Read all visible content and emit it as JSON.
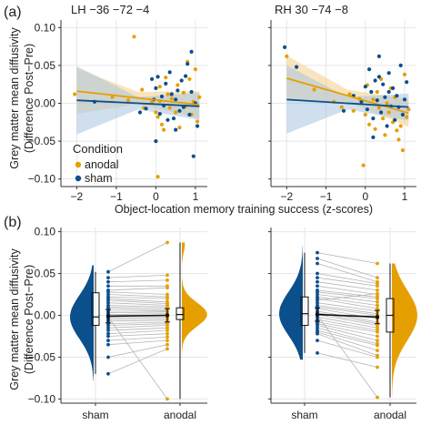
{
  "panel_labels": {
    "a": "(a)",
    "b": "(b)"
  },
  "colors": {
    "anodal": "#E69F00",
    "sham": "#0B4F8C",
    "grid": "#e6e6e6",
    "line": "#b5b5b5"
  },
  "y_label_line1": "Grey matter mean diffusivity",
  "y_label_line2": "(Difference Post−Pre)",
  "x_label_a": "Object-location memory training success (z-scores)",
  "legend": {
    "title": "Condition",
    "items": [
      {
        "name": "anodal"
      },
      {
        "name": "sham"
      }
    ]
  },
  "chart_data": [
    {
      "type": "scatter",
      "title": "LH −36 −72 −4",
      "xlabel": "Object-location memory training success (z-scores)",
      "ylabel": "Grey matter mean diffusivity (Difference Post−Pre)",
      "xlim": [
        -2.4,
        1.3
      ],
      "ylim": [
        -0.11,
        0.11
      ],
      "xticks": [
        -2,
        -1,
        0,
        1
      ],
      "yticks": [
        -0.1,
        -0.05,
        0.0,
        0.05,
        0.1
      ],
      "xtick_labels": [
        "−2",
        "−1",
        "0",
        "1"
      ],
      "ytick_labels": [
        "−0.10",
        "−0.05",
        "0.00",
        "0.05",
        "0.10"
      ],
      "grid": true,
      "legend_position": "bottom-left",
      "series": [
        {
          "name": "anodal",
          "points": [
            [
              -2.05,
              0.012
            ],
            [
              -1.1,
              0.008
            ],
            [
              -0.7,
              0.004
            ],
            [
              -0.55,
              0.088
            ],
            [
              -0.35,
              0.018
            ],
            [
              -0.3,
              -0.006
            ],
            [
              -0.1,
              0.002
            ],
            [
              0.0,
              -0.012
            ],
            [
              0.05,
              -0.018
            ],
            [
              0.1,
              0.022
            ],
            [
              0.1,
              0.003
            ],
            [
              0.15,
              -0.028
            ],
            [
              0.2,
              -0.035
            ],
            [
              0.25,
              0.034
            ],
            [
              0.3,
              0.012
            ],
            [
              0.35,
              -0.006
            ],
            [
              0.4,
              0.006
            ],
            [
              0.5,
              -0.012
            ],
            [
              0.55,
              0.024
            ],
            [
              0.6,
              -0.032
            ],
            [
              0.7,
              0.014
            ],
            [
              0.75,
              -0.004
            ],
            [
              0.8,
              0.055
            ],
            [
              0.85,
              0.032
            ],
            [
              0.9,
              -0.015
            ],
            [
              0.95,
              0.002
            ],
            [
              1.0,
              0.045
            ],
            [
              1.05,
              -0.024
            ],
            [
              1.1,
              0.008
            ],
            [
              0.05,
              -0.097
            ]
          ],
          "fit": {
            "x": [
              -2.0,
              1.1
            ],
            "y": [
              0.016,
              -0.002
            ]
          }
        },
        {
          "name": "sham",
          "points": [
            [
              -1.55,
              0.002
            ],
            [
              -0.4,
              -0.012
            ],
            [
              -0.25,
              -0.007
            ],
            [
              -0.1,
              0.032
            ],
            [
              -0.05,
              0.005
            ],
            [
              0.0,
              -0.05
            ],
            [
              0.0,
              0.02
            ],
            [
              0.05,
              0.035
            ],
            [
              0.1,
              -0.014
            ],
            [
              0.15,
              0.009
            ],
            [
              0.2,
              -0.003
            ],
            [
              0.25,
              0.026
            ],
            [
              0.3,
              -0.022
            ],
            [
              0.35,
              0.041
            ],
            [
              0.4,
              0.012
            ],
            [
              0.45,
              -0.02
            ],
            [
              0.5,
              -0.035
            ],
            [
              0.5,
              0.005
            ],
            [
              0.55,
              0.017
            ],
            [
              0.6,
              -0.01
            ],
            [
              0.65,
              0.03
            ],
            [
              0.7,
              -0.005
            ],
            [
              0.75,
              0.036
            ],
            [
              0.8,
              0.052
            ],
            [
              0.85,
              -0.015
            ],
            [
              0.9,
              0.015
            ],
            [
              0.95,
              -0.07
            ],
            [
              1.0,
              0.0
            ],
            [
              1.05,
              -0.03
            ],
            [
              0.9,
              0.068
            ]
          ],
          "fit": {
            "x": [
              -2.0,
              1.1
            ],
            "y": [
              0.004,
              -0.004
            ]
          }
        }
      ]
    },
    {
      "type": "scatter",
      "title": "RH 30 −74 −8",
      "xlabel": "Object-location memory training success (z-scores)",
      "ylabel": "",
      "xlim": [
        -2.4,
        1.3
      ],
      "ylim": [
        -0.11,
        0.11
      ],
      "xticks": [
        -2,
        -1,
        0,
        1
      ],
      "yticks": [
        -0.1,
        -0.05,
        0.0,
        0.05,
        0.1
      ],
      "xtick_labels": [
        "−2",
        "−1",
        "0",
        "1"
      ],
      "grid": true,
      "series": [
        {
          "name": "anodal",
          "points": [
            [
              -2.0,
              0.062
            ],
            [
              -1.3,
              0.018
            ],
            [
              -0.8,
              0.002
            ],
            [
              -0.6,
              -0.005
            ],
            [
              -0.4,
              0.012
            ],
            [
              -0.3,
              -0.01
            ],
            [
              -0.15,
              0.006
            ],
            [
              0.0,
              -0.015
            ],
            [
              0.05,
              0.024
            ],
            [
              0.1,
              -0.028
            ],
            [
              0.2,
              0.005
            ],
            [
              0.25,
              -0.034
            ],
            [
              0.3,
              0.015
            ],
            [
              0.35,
              -0.006
            ],
            [
              0.4,
              0.032
            ],
            [
              0.45,
              -0.02
            ],
            [
              0.5,
              -0.042
            ],
            [
              0.55,
              0.0
            ],
            [
              0.6,
              -0.012
            ],
            [
              0.65,
              0.02
            ],
            [
              0.7,
              -0.025
            ],
            [
              0.75,
              0.008
            ],
            [
              0.8,
              -0.036
            ],
            [
              0.85,
              -0.048
            ],
            [
              0.9,
              -0.03
            ],
            [
              0.95,
              -0.062
            ],
            [
              1.0,
              0.038
            ],
            [
              1.05,
              -0.018
            ],
            [
              1.1,
              -0.008
            ],
            [
              -0.05,
              -0.082
            ]
          ],
          "fit": {
            "x": [
              -2.0,
              1.1
            ],
            "y": [
              0.033,
              -0.013
            ]
          }
        },
        {
          "name": "sham",
          "points": [
            [
              -2.05,
              0.074
            ],
            [
              -1.75,
              0.048
            ],
            [
              -0.55,
              -0.01
            ],
            [
              -0.3,
              0.01
            ],
            [
              -0.1,
              0.002
            ],
            [
              0.0,
              0.022
            ],
            [
              0.05,
              -0.008
            ],
            [
              0.1,
              0.045
            ],
            [
              0.15,
              0.015
            ],
            [
              0.2,
              -0.02
            ],
            [
              0.25,
              0.03
            ],
            [
              0.3,
              0.004
            ],
            [
              0.35,
              0.035
            ],
            [
              0.4,
              -0.012
            ],
            [
              0.45,
              0.025
            ],
            [
              0.5,
              0.008
            ],
            [
              0.55,
              -0.03
            ],
            [
              0.6,
              0.015
            ],
            [
              0.65,
              -0.004
            ],
            [
              0.7,
              0.02
            ],
            [
              0.75,
              -0.022
            ],
            [
              0.8,
              0.01
            ],
            [
              0.85,
              -0.005
            ],
            [
              0.9,
              0.05
            ],
            [
              0.95,
              -0.015
            ],
            [
              1.0,
              0.005
            ],
            [
              1.05,
              0.028
            ],
            [
              0.35,
              0.062
            ],
            [
              0.6,
              0.04
            ],
            [
              0.2,
              -0.045
            ]
          ],
          "fit": {
            "x": [
              -2.0,
              1.1
            ],
            "y": [
              0.005,
              -0.005
            ]
          }
        }
      ]
    },
    {
      "type": "violin",
      "title": "",
      "ylabel": "Grey matter mean diffusivity (Difference Post−Pre)",
      "categories": [
        "sham",
        "anodal"
      ],
      "ylim": [
        -0.105,
        0.105
      ],
      "yticks": [
        -0.1,
        -0.05,
        0.0,
        0.05,
        0.1
      ],
      "ytick_labels": [
        "−0.10",
        "−0.05",
        "0.00",
        "0.05",
        "0.10"
      ],
      "box": {
        "sham": {
          "q1": -0.012,
          "median": -0.002,
          "q3": 0.027,
          "min": -0.07,
          "max": 0.052
        },
        "anodal": {
          "q1": -0.005,
          "median": 0.001,
          "q3": 0.009,
          "min": -0.1,
          "max": 0.087
        }
      },
      "means": {
        "sham": -0.001,
        "anodal": 0.0
      },
      "paired": [
        [
          0.052,
          0.087
        ],
        [
          0.045,
          0.048
        ],
        [
          0.04,
          0.042
        ],
        [
          0.035,
          0.035
        ],
        [
          0.03,
          0.033
        ],
        [
          0.028,
          0.025
        ],
        [
          0.025,
          0.022
        ],
        [
          0.022,
          0.02
        ],
        [
          0.02,
          0.016
        ],
        [
          0.018,
          0.014
        ],
        [
          0.015,
          0.012
        ],
        [
          0.012,
          0.01
        ],
        [
          0.01,
          0.008
        ],
        [
          0.008,
          0.006
        ],
        [
          0.005,
          0.005
        ],
        [
          0.003,
          0.004
        ],
        [
          0.001,
          0.002
        ],
        [
          -0.001,
          0.0
        ],
        [
          -0.003,
          -0.002
        ],
        [
          -0.005,
          -0.004
        ],
        [
          -0.007,
          -0.006
        ],
        [
          -0.01,
          -0.008
        ],
        [
          -0.012,
          -0.01
        ],
        [
          -0.015,
          -0.012
        ],
        [
          -0.018,
          -0.015
        ],
        [
          -0.022,
          -0.018
        ],
        [
          -0.025,
          -0.022
        ],
        [
          -0.03,
          -0.026
        ],
        [
          -0.035,
          -0.03
        ],
        [
          -0.05,
          -0.035
        ],
        [
          -0.07,
          -0.04
        ],
        [
          -0.002,
          -0.1
        ]
      ]
    },
    {
      "type": "violin",
      "title": "",
      "categories": [
        "sham",
        "anodal"
      ],
      "ylim": [
        -0.105,
        0.105
      ],
      "yticks": [
        -0.1,
        -0.05,
        0.0,
        0.05,
        0.1
      ],
      "box": {
        "sham": {
          "q1": -0.012,
          "median": 0.002,
          "q3": 0.022,
          "min": -0.045,
          "max": 0.075
        },
        "anodal": {
          "q1": -0.02,
          "median": 0.0,
          "q3": 0.02,
          "min": -0.098,
          "max": 0.062
        }
      },
      "means": {
        "sham": 0.001,
        "anodal": -0.002
      },
      "paired": [
        [
          0.075,
          0.062
        ],
        [
          0.068,
          0.045
        ],
        [
          0.062,
          0.04
        ],
        [
          0.05,
          0.038
        ],
        [
          0.045,
          0.035
        ],
        [
          0.04,
          0.03
        ],
        [
          0.035,
          0.025
        ],
        [
          0.03,
          0.022
        ],
        [
          0.028,
          0.02
        ],
        [
          0.025,
          0.016
        ],
        [
          0.022,
          0.012
        ],
        [
          0.02,
          0.008
        ],
        [
          0.015,
          0.005
        ],
        [
          0.012,
          0.002
        ],
        [
          0.01,
          0.0
        ],
        [
          0.008,
          -0.004
        ],
        [
          0.005,
          -0.008
        ],
        [
          0.003,
          -0.01
        ],
        [
          0.001,
          -0.012
        ],
        [
          -0.002,
          -0.015
        ],
        [
          -0.005,
          -0.018
        ],
        [
          -0.008,
          -0.02
        ],
        [
          -0.01,
          -0.025
        ],
        [
          -0.012,
          -0.03
        ],
        [
          -0.015,
          -0.034
        ],
        [
          -0.018,
          -0.036
        ],
        [
          -0.02,
          -0.042
        ],
        [
          -0.022,
          -0.048
        ],
        [
          -0.03,
          -0.05
        ],
        [
          -0.045,
          -0.062
        ],
        [
          0.0,
          -0.098
        ],
        [
          0.018,
          0.026
        ]
      ]
    }
  ],
  "panel_b_xticks": [
    "sham",
    "anodal"
  ]
}
